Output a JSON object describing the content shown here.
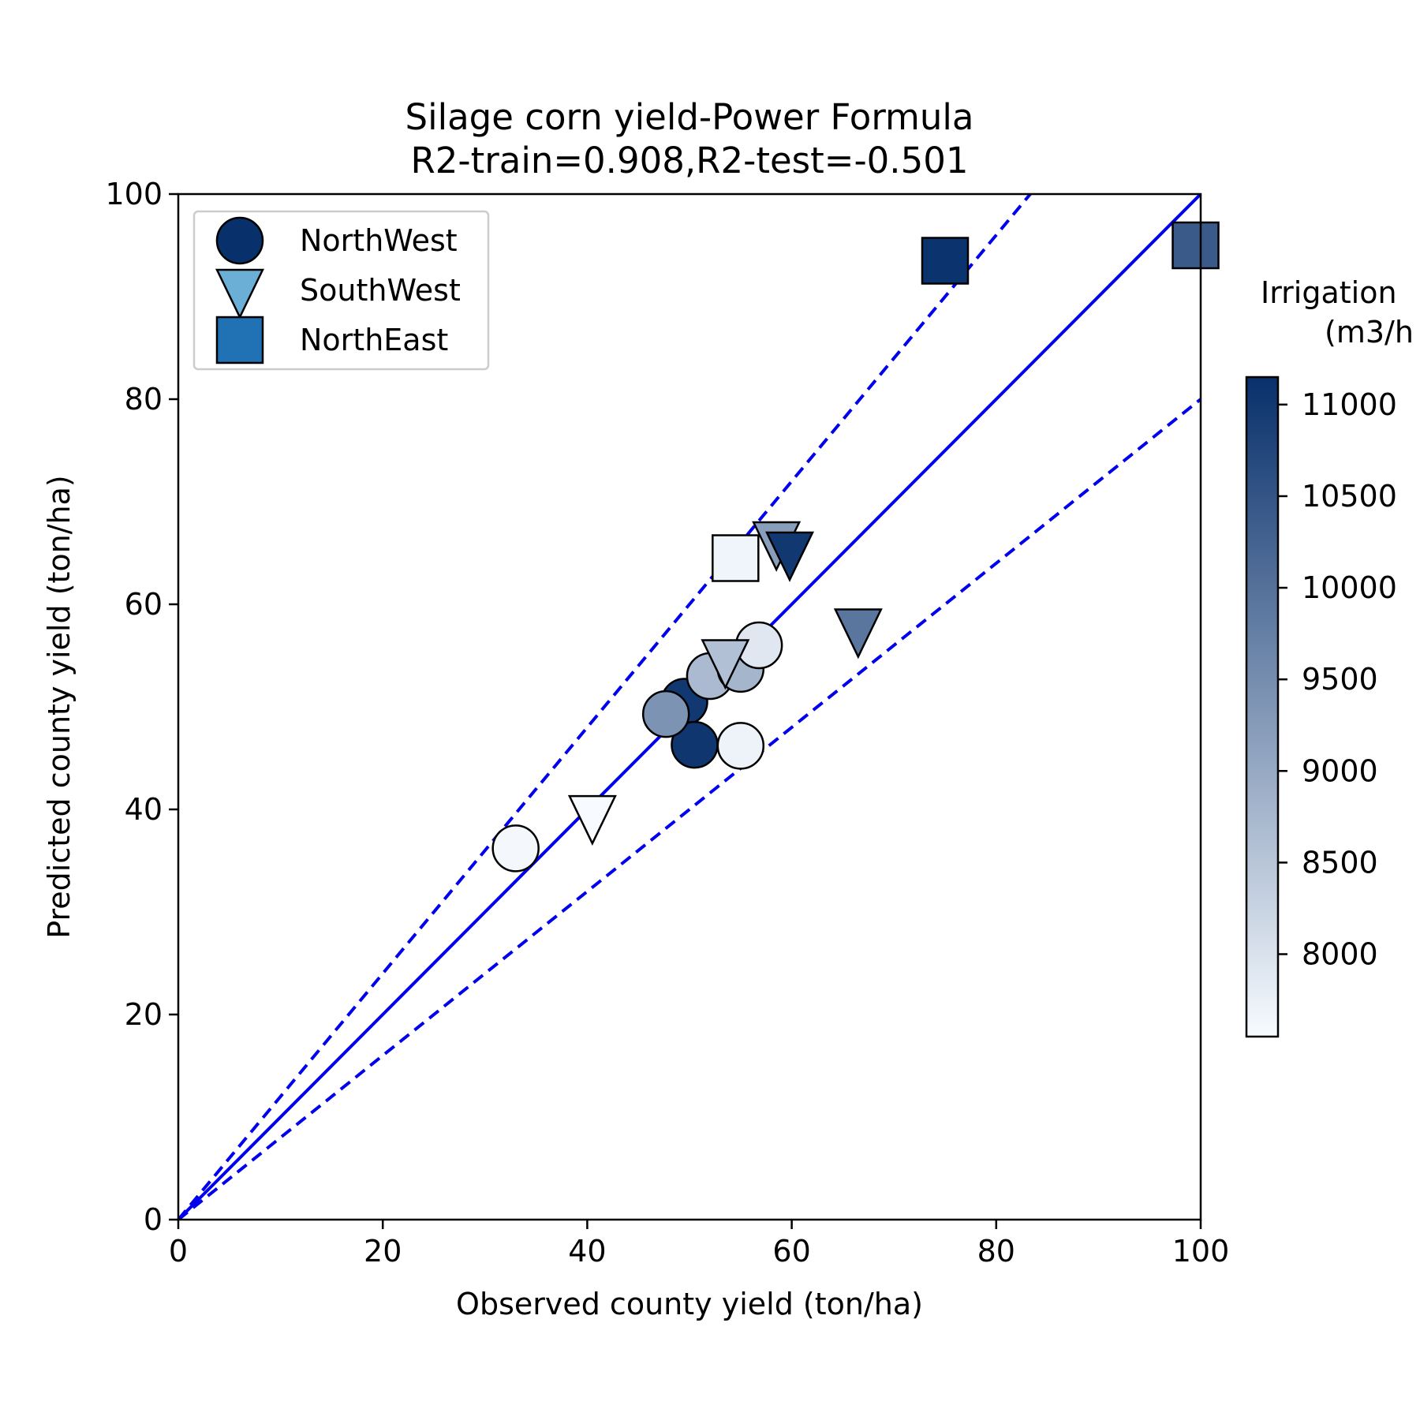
{
  "chart_data": {
    "type": "scatter",
    "title": "Silage corn yield-Power Formula",
    "subtitle": "R2-train=0.908,R2-test=-0.501",
    "xlabel": "Observed county yield (ton/ha)",
    "ylabel": "Predicted county yield (ton/ha)",
    "xlim": [
      0,
      100
    ],
    "ylim": [
      0,
      100
    ],
    "xticks": [
      "0",
      "20",
      "40",
      "60",
      "80",
      "100"
    ],
    "yticks": [
      "0",
      "20",
      "40",
      "60",
      "80",
      "100"
    ],
    "grid": false,
    "legend_position": "top-left",
    "reference_lines": [
      {
        "style": "solid",
        "slope": 1.0
      },
      {
        "style": "dashed",
        "slope": 1.2
      },
      {
        "style": "dashed",
        "slope": 0.8
      }
    ],
    "line_color": "#0000ee",
    "colorbar": {
      "label_line1": "Irrigation",
      "label_line2": "(m3/h",
      "range": [
        7550,
        11150
      ],
      "ticks": [
        "8000",
        "8500",
        "9000",
        "9500",
        "10000",
        "10500",
        "11000"
      ],
      "color_low": "#f7fbff",
      "color_high": "#08306b"
    },
    "series": [
      {
        "name": "NorthWest",
        "marker": "circle",
        "legend_color": "#08306b",
        "points": [
          {
            "x": 33,
            "y": 36.2,
            "irrigation": 7600
          },
          {
            "x": 49.5,
            "y": 50.5,
            "irrigation": 11000
          },
          {
            "x": 50.5,
            "y": 46.3,
            "irrigation": 11050
          },
          {
            "x": 47.7,
            "y": 49.3,
            "irrigation": 9400
          },
          {
            "x": 52,
            "y": 53,
            "irrigation": 8700
          },
          {
            "x": 55,
            "y": 53.7,
            "irrigation": 8800
          },
          {
            "x": 56.8,
            "y": 56,
            "irrigation": 7900
          },
          {
            "x": 55,
            "y": 46.2,
            "irrigation": 7700
          }
        ]
      },
      {
        "name": "SouthWest",
        "marker": "triangle-down",
        "legend_color": "#6baed6",
        "points": [
          {
            "x": 40.5,
            "y": 39.3,
            "irrigation": 7550
          },
          {
            "x": 53.5,
            "y": 54.5,
            "irrigation": 8600
          },
          {
            "x": 58.5,
            "y": 66,
            "irrigation": 9200
          },
          {
            "x": 59.8,
            "y": 65,
            "irrigation": 11000
          },
          {
            "x": 66.5,
            "y": 57.5,
            "irrigation": 9900
          }
        ]
      },
      {
        "name": "NorthEast",
        "marker": "square",
        "legend_color": "#2171b5",
        "points": [
          {
            "x": 75,
            "y": 93.5,
            "irrigation": 11100
          },
          {
            "x": 54.5,
            "y": 64.5,
            "irrigation": 7650
          },
          {
            "x": 99.5,
            "y": 95,
            "irrigation": 10400
          }
        ]
      }
    ]
  }
}
